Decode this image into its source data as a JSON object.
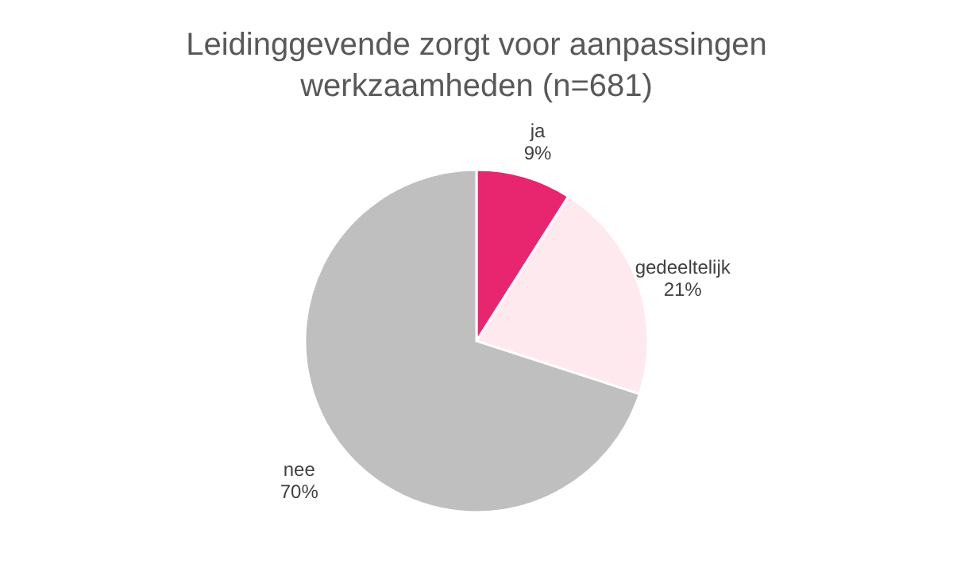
{
  "chart_data": {
    "type": "pie",
    "title": "Leidinggevende zorgt voor aanpassingen werkzaamheden (n=681)",
    "categories": [
      "ja",
      "gedeeltelijk",
      "nee"
    ],
    "values": [
      9,
      21,
      70
    ],
    "value_labels": [
      "9%",
      "21%",
      "70%"
    ],
    "colors": [
      "#e8266f",
      "#fde9ee",
      "#bfbfbf"
    ],
    "legend": false
  }
}
